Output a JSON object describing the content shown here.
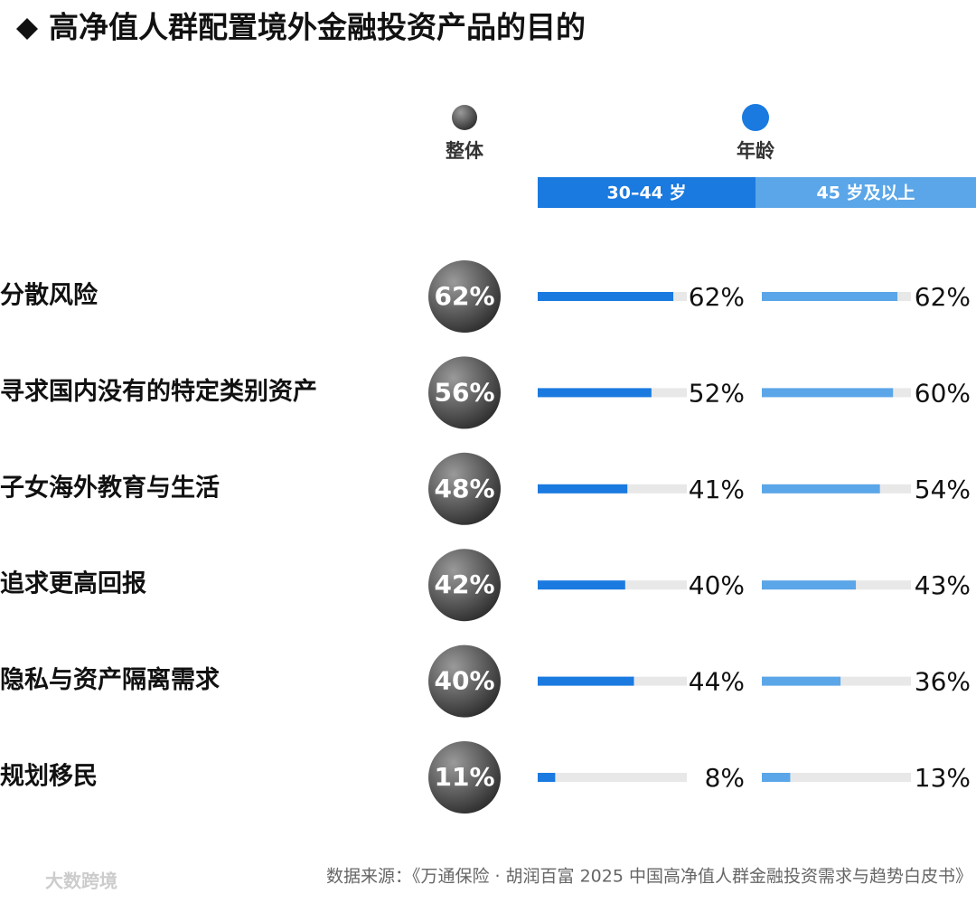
{
  "chart_data": {
    "type": "bar",
    "title": "高净值人群配置境外金融投资产品的目的",
    "group_label": "年龄",
    "group_color": "#1a7ae0",
    "categories": [
      "分散风险",
      "寻求国内没有的特定类别资产",
      "子女海外教育与生活",
      "追求更高回报",
      "隐私与资产隔离需求",
      "规划移民"
    ],
    "series": [
      {
        "name": "整体",
        "color": "#555555",
        "values": [
          62,
          56,
          48,
          42,
          40,
          11
        ],
        "value_labels": [
          "62%",
          "56%",
          "48%",
          "42%",
          "40%",
          "11%"
        ]
      },
      {
        "name": "30–44 岁",
        "color": "#1a7ae0",
        "values": [
          62,
          52,
          41,
          40,
          44,
          8
        ],
        "value_labels": [
          "62%",
          "52%",
          "41%",
          "40%",
          "44%",
          "8%"
        ]
      },
      {
        "name": "45 岁及以上",
        "color": "#5ba6e8",
        "values": [
          62,
          60,
          54,
          43,
          36,
          13
        ],
        "value_labels": [
          "62%",
          "60%",
          "54%",
          "43%",
          "36%",
          "13%"
        ]
      }
    ],
    "source": "数据来源：《万通保险 · 胡润百富 2025 中国高净值人群金融投资需求与趋势白皮书》",
    "watermark": "大数跨境"
  }
}
